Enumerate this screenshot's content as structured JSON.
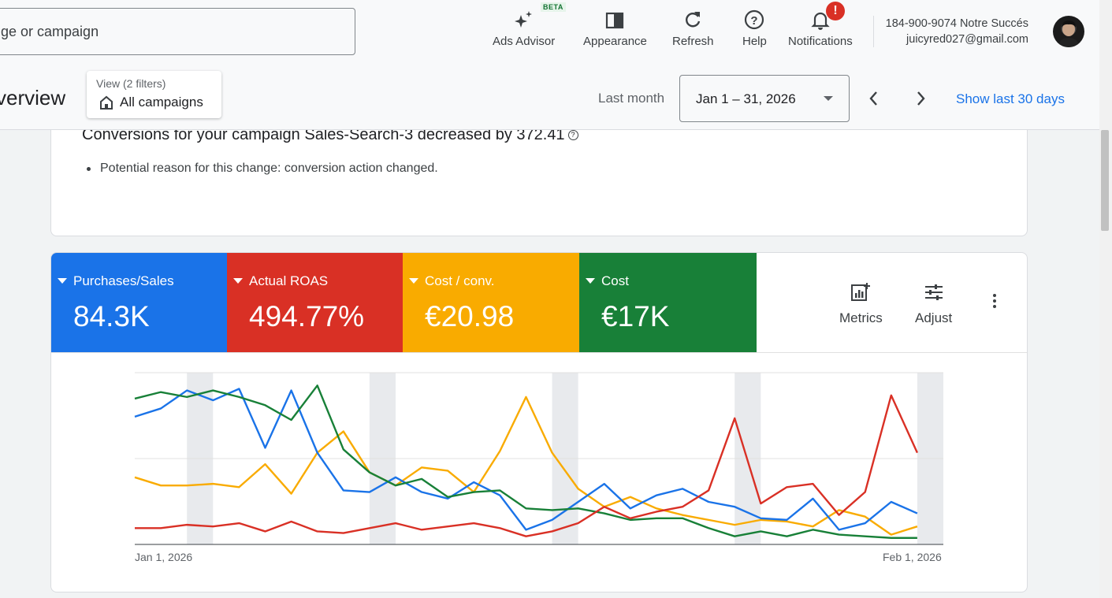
{
  "topbar": {
    "search_text": "ge or campaign",
    "tools": [
      {
        "label": "Ads Advisor",
        "icon": "sparkle-icon"
      },
      {
        "label": "Appearance",
        "icon": "appearance-icon"
      },
      {
        "label": "Refresh",
        "icon": "refresh-icon"
      },
      {
        "label": "Help",
        "icon": "help-icon"
      },
      {
        "label": "Notifications",
        "icon": "bell-icon"
      }
    ],
    "beta_badge": "BETA",
    "notification_alert": "!",
    "account_line1": "184-900-9074 Notre Succés",
    "account_line2": "juicyred027@gmail.com"
  },
  "header": {
    "page_title": "verview",
    "view_filter_small": "View (2 filters)",
    "view_filter_big": "All campaigns",
    "period_label": "Last month",
    "date_range": "Jan 1 – 31, 2026",
    "show_last": "Show last 30 days"
  },
  "insight": {
    "title": "Conversions for your campaign Sales-Search-3 decreased by 372.41",
    "help_glyph": "?",
    "bullet": "Potential reason for this change: conversion action changed."
  },
  "scorecards": [
    {
      "name": "Purchases/Sales",
      "value": "84.3K",
      "color": "#1a73e8"
    },
    {
      "name": "Actual ROAS",
      "value": "494.77%",
      "color": "#d93025"
    },
    {
      "name": "Cost / conv.",
      "value": "€20.98",
      "color": "#f9ab00"
    },
    {
      "name": "Cost",
      "value": "€17K",
      "color": "#188038"
    }
  ],
  "chart_tools": {
    "metrics": "Metrics",
    "adjust": "Adjust"
  },
  "chart_data": {
    "type": "line",
    "x_start_label": "Jan 1, 2026",
    "x_end_label": "Feb 1, 2026",
    "y_scale": "normalized 0-1 per metric (no axis values shown)",
    "weekend_bands": [
      [
        2,
        3
      ],
      [
        9,
        10
      ],
      [
        16,
        17
      ],
      [
        23,
        24
      ],
      [
        30,
        31
      ]
    ],
    "series": [
      {
        "name": "Purchases/Sales",
        "color": "#1a73e8",
        "values": [
          0.77,
          0.82,
          0.93,
          0.87,
          0.94,
          0.58,
          0.93,
          0.55,
          0.32,
          0.31,
          0.4,
          0.31,
          0.27,
          0.37,
          0.29,
          0.08,
          0.14,
          0.25,
          0.36,
          0.21,
          0.29,
          0.33,
          0.25,
          0.22,
          0.15,
          0.14,
          0.27,
          0.08,
          0.12,
          0.25,
          0.18
        ]
      },
      {
        "name": "Actual ROAS",
        "color": "#d93025",
        "values": [
          0.09,
          0.09,
          0.11,
          0.1,
          0.12,
          0.07,
          0.13,
          0.07,
          0.06,
          0.09,
          0.12,
          0.08,
          0.1,
          0.12,
          0.09,
          0.04,
          0.07,
          0.12,
          0.22,
          0.15,
          0.19,
          0.22,
          0.32,
          0.76,
          0.24,
          0.34,
          0.36,
          0.17,
          0.31,
          0.9,
          0.55
        ]
      },
      {
        "name": "Cost / conv.",
        "color": "#f9ab00",
        "values": [
          0.4,
          0.35,
          0.35,
          0.36,
          0.34,
          0.48,
          0.3,
          0.55,
          0.68,
          0.43,
          0.35,
          0.46,
          0.44,
          0.31,
          0.56,
          0.89,
          0.55,
          0.33,
          0.22,
          0.28,
          0.21,
          0.17,
          0.14,
          0.11,
          0.14,
          0.13,
          0.1,
          0.2,
          0.16,
          0.05,
          0.1
        ]
      },
      {
        "name": "Cost",
        "color": "#188038",
        "values": [
          0.88,
          0.92,
          0.89,
          0.93,
          0.89,
          0.84,
          0.75,
          0.96,
          0.57,
          0.43,
          0.35,
          0.39,
          0.28,
          0.31,
          0.32,
          0.21,
          0.2,
          0.21,
          0.18,
          0.14,
          0.15,
          0.15,
          0.09,
          0.04,
          0.07,
          0.04,
          0.08,
          0.05,
          0.04,
          0.03,
          0.03
        ]
      }
    ]
  }
}
